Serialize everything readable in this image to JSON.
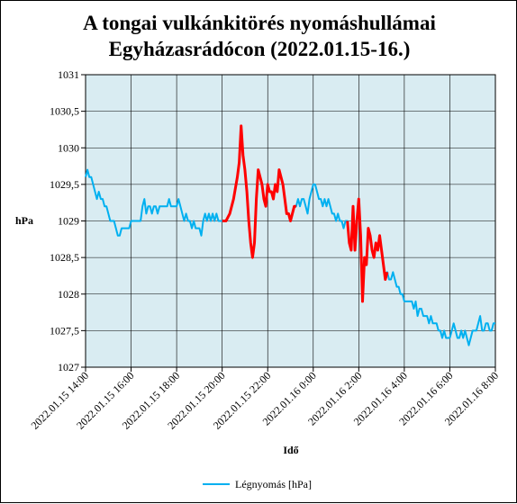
{
  "chart_data": {
    "type": "line",
    "title_line1": "A tongai vulkánkitörés nyomáshullámai",
    "title_line2": "Egyházasrádócon (2022.01.15-16.)",
    "xlabel": "Idő",
    "ylabel": "hPa",
    "ylim": [
      1027,
      1031
    ],
    "y_ticks": [
      "1027",
      "1027,5",
      "1028",
      "1028,5",
      "1029",
      "1029,5",
      "1030",
      "1030,5",
      "1031"
    ],
    "x_ticks": [
      "2022.01.15 14:00",
      "2022.01.15 16:00",
      "2022.01.15 18:00",
      "2022.01.15 20:00",
      "2022.01.15 22:00",
      "2022.01.16 0:00",
      "2022.01.16 2:00",
      "2022.01.16 4:00",
      "2022.01.16 6:00",
      "2022.01.16 8:00"
    ],
    "x_range": [
      "2022-01-15 14:00",
      "2022-01-16 08:00"
    ],
    "grid": true,
    "legend_position": "bottom",
    "plot_background": "#d9ecf2",
    "colors": {
      "series": "#00b0f0",
      "highlight": "#ff0000"
    },
    "series": [
      {
        "name": "Légnyomás [hPa]",
        "color": "#00b0f0",
        "points": [
          [
            "2022-01-15 14:00",
            1029.6
          ],
          [
            "2022-01-15 14:05",
            1029.7
          ],
          [
            "2022-01-15 14:10",
            1029.6
          ],
          [
            "2022-01-15 14:15",
            1029.6
          ],
          [
            "2022-01-15 14:20",
            1029.5
          ],
          [
            "2022-01-15 14:25",
            1029.4
          ],
          [
            "2022-01-15 14:30",
            1029.3
          ],
          [
            "2022-01-15 14:35",
            1029.4
          ],
          [
            "2022-01-15 14:40",
            1029.3
          ],
          [
            "2022-01-15 14:45",
            1029.3
          ],
          [
            "2022-01-15 14:50",
            1029.2
          ],
          [
            "2022-01-15 14:55",
            1029.2
          ],
          [
            "2022-01-15 15:00",
            1029.1
          ],
          [
            "2022-01-15 15:05",
            1029.0
          ],
          [
            "2022-01-15 15:10",
            1029.0
          ],
          [
            "2022-01-15 15:15",
            1029.0
          ],
          [
            "2022-01-15 15:20",
            1028.9
          ],
          [
            "2022-01-15 15:25",
            1028.8
          ],
          [
            "2022-01-15 15:30",
            1028.8
          ],
          [
            "2022-01-15 15:35",
            1028.9
          ],
          [
            "2022-01-15 15:40",
            1028.9
          ],
          [
            "2022-01-15 15:45",
            1028.9
          ],
          [
            "2022-01-15 15:50",
            1028.9
          ],
          [
            "2022-01-15 15:55",
            1028.9
          ],
          [
            "2022-01-15 16:00",
            1029.0
          ],
          [
            "2022-01-15 16:10",
            1029.0
          ],
          [
            "2022-01-15 16:20",
            1029.0
          ],
          [
            "2022-01-15 16:25",
            1029.0
          ],
          [
            "2022-01-15 16:30",
            1029.2
          ],
          [
            "2022-01-15 16:35",
            1029.3
          ],
          [
            "2022-01-15 16:40",
            1029.1
          ],
          [
            "2022-01-15 16:45",
            1029.2
          ],
          [
            "2022-01-15 16:50",
            1029.2
          ],
          [
            "2022-01-15 16:55",
            1029.1
          ],
          [
            "2022-01-15 17:00",
            1029.2
          ],
          [
            "2022-01-15 17:05",
            1029.2
          ],
          [
            "2022-01-15 17:10",
            1029.1
          ],
          [
            "2022-01-15 17:15",
            1029.2
          ],
          [
            "2022-01-15 17:20",
            1029.2
          ],
          [
            "2022-01-15 17:25",
            1029.2
          ],
          [
            "2022-01-15 17:30",
            1029.2
          ],
          [
            "2022-01-15 17:35",
            1029.2
          ],
          [
            "2022-01-15 17:40",
            1029.3
          ],
          [
            "2022-01-15 17:45",
            1029.2
          ],
          [
            "2022-01-15 17:50",
            1029.2
          ],
          [
            "2022-01-15 17:55",
            1029.2
          ],
          [
            "2022-01-15 18:00",
            1029.2
          ],
          [
            "2022-01-15 18:05",
            1029.3
          ],
          [
            "2022-01-15 18:10",
            1029.2
          ],
          [
            "2022-01-15 18:15",
            1029.1
          ],
          [
            "2022-01-15 18:20",
            1029.0
          ],
          [
            "2022-01-15 18:25",
            1029.1
          ],
          [
            "2022-01-15 18:30",
            1029.0
          ],
          [
            "2022-01-15 18:35",
            1029.0
          ],
          [
            "2022-01-15 18:40",
            1028.9
          ],
          [
            "2022-01-15 18:45",
            1029.0
          ],
          [
            "2022-01-15 18:50",
            1028.9
          ],
          [
            "2022-01-15 18:55",
            1028.9
          ],
          [
            "2022-01-15 19:00",
            1028.9
          ],
          [
            "2022-01-15 19:05",
            1028.8
          ],
          [
            "2022-01-15 19:10",
            1029.0
          ],
          [
            "2022-01-15 19:15",
            1029.1
          ],
          [
            "2022-01-15 19:20",
            1029.0
          ],
          [
            "2022-01-15 19:25",
            1029.1
          ],
          [
            "2022-01-15 19:30",
            1029.0
          ],
          [
            "2022-01-15 19:35",
            1029.1
          ],
          [
            "2022-01-15 19:40",
            1029.0
          ],
          [
            "2022-01-15 19:45",
            1029.1
          ],
          [
            "2022-01-15 19:50",
            1029.0
          ],
          [
            "2022-01-15 19:55",
            1029.0
          ],
          [
            "2022-01-15 20:00",
            1029.0
          ],
          [
            "2022-01-15 20:10",
            1029.0
          ],
          [
            "2022-01-15 20:20",
            1029.1
          ],
          [
            "2022-01-15 20:30",
            1029.3
          ],
          [
            "2022-01-15 20:40",
            1029.6
          ],
          [
            "2022-01-15 20:45",
            1029.8
          ],
          [
            "2022-01-15 20:50",
            1030.3
          ],
          [
            "2022-01-15 20:55",
            1029.9
          ],
          [
            "2022-01-15 21:00",
            1029.7
          ],
          [
            "2022-01-15 21:05",
            1029.4
          ],
          [
            "2022-01-15 21:10",
            1029.0
          ],
          [
            "2022-01-15 21:15",
            1028.7
          ],
          [
            "2022-01-15 21:20",
            1028.5
          ],
          [
            "2022-01-15 21:25",
            1028.7
          ],
          [
            "2022-01-15 21:30",
            1029.3
          ],
          [
            "2022-01-15 21:35",
            1029.7
          ],
          [
            "2022-01-15 21:40",
            1029.6
          ],
          [
            "2022-01-15 21:45",
            1029.5
          ],
          [
            "2022-01-15 21:50",
            1029.3
          ],
          [
            "2022-01-15 21:55",
            1029.2
          ],
          [
            "2022-01-15 22:00",
            1029.5
          ],
          [
            "2022-01-15 22:05",
            1029.4
          ],
          [
            "2022-01-15 22:10",
            1029.4
          ],
          [
            "2022-01-15 22:15",
            1029.3
          ],
          [
            "2022-01-15 22:20",
            1029.5
          ],
          [
            "2022-01-15 22:25",
            1029.4
          ],
          [
            "2022-01-15 22:30",
            1029.7
          ],
          [
            "2022-01-15 22:35",
            1029.6
          ],
          [
            "2022-01-15 22:40",
            1029.5
          ],
          [
            "2022-01-15 22:45",
            1029.3
          ],
          [
            "2022-01-15 22:50",
            1029.1
          ],
          [
            "2022-01-15 22:55",
            1029.1
          ],
          [
            "2022-01-15 23:00",
            1029.0
          ],
          [
            "2022-01-15 23:05",
            1029.1
          ],
          [
            "2022-01-15 23:10",
            1029.2
          ],
          [
            "2022-01-15 23:15",
            1029.2
          ],
          [
            "2022-01-15 23:20",
            1029.3
          ],
          [
            "2022-01-15 23:25",
            1029.2
          ],
          [
            "2022-01-15 23:30",
            1029.3
          ],
          [
            "2022-01-15 23:35",
            1029.3
          ],
          [
            "2022-01-15 23:40",
            1029.2
          ],
          [
            "2022-01-15 23:45",
            1029.1
          ],
          [
            "2022-01-15 23:50",
            1029.3
          ],
          [
            "2022-01-15 23:55",
            1029.4
          ],
          [
            "2022-01-16 00:00",
            1029.5
          ],
          [
            "2022-01-16 00:05",
            1029.5
          ],
          [
            "2022-01-16 00:10",
            1029.4
          ],
          [
            "2022-01-16 00:15",
            1029.3
          ],
          [
            "2022-01-16 00:20",
            1029.3
          ],
          [
            "2022-01-16 00:25",
            1029.2
          ],
          [
            "2022-01-16 00:30",
            1029.3
          ],
          [
            "2022-01-16 00:35",
            1029.2
          ],
          [
            "2022-01-16 00:40",
            1029.3
          ],
          [
            "2022-01-16 00:45",
            1029.2
          ],
          [
            "2022-01-16 00:50",
            1029.1
          ],
          [
            "2022-01-16 00:55",
            1029.1
          ],
          [
            "2022-01-16 01:00",
            1029.0
          ],
          [
            "2022-01-16 01:05",
            1029.1
          ],
          [
            "2022-01-16 01:10",
            1029.0
          ],
          [
            "2022-01-16 01:15",
            1029.0
          ],
          [
            "2022-01-16 01:20",
            1028.9
          ],
          [
            "2022-01-16 01:25",
            1029.0
          ],
          [
            "2022-01-16 01:30",
            1029.0
          ],
          [
            "2022-01-16 01:35",
            1028.7
          ],
          [
            "2022-01-16 01:40",
            1028.6
          ],
          [
            "2022-01-16 01:45",
            1029.2
          ],
          [
            "2022-01-16 01:50",
            1028.6
          ],
          [
            "2022-01-16 01:55",
            1029.0
          ],
          [
            "2022-01-16 02:00",
            1029.3
          ],
          [
            "2022-01-16 02:05",
            1028.8
          ],
          [
            "2022-01-16 02:10",
            1027.9
          ],
          [
            "2022-01-16 02:15",
            1028.5
          ],
          [
            "2022-01-16 02:20",
            1028.4
          ],
          [
            "2022-01-16 02:25",
            1028.9
          ],
          [
            "2022-01-16 02:30",
            1028.8
          ],
          [
            "2022-01-16 02:35",
            1028.6
          ],
          [
            "2022-01-16 02:40",
            1028.5
          ],
          [
            "2022-01-16 02:45",
            1028.7
          ],
          [
            "2022-01-16 02:50",
            1028.6
          ],
          [
            "2022-01-16 02:55",
            1028.8
          ],
          [
            "2022-01-16 03:00",
            1028.6
          ],
          [
            "2022-01-16 03:05",
            1028.4
          ],
          [
            "2022-01-16 03:10",
            1028.2
          ],
          [
            "2022-01-16 03:15",
            1028.3
          ],
          [
            "2022-01-16 03:20",
            1028.2
          ],
          [
            "2022-01-16 03:25",
            1028.2
          ],
          [
            "2022-01-16 03:30",
            1028.3
          ],
          [
            "2022-01-16 03:35",
            1028.2
          ],
          [
            "2022-01-16 03:40",
            1028.1
          ],
          [
            "2022-01-16 03:45",
            1028.1
          ],
          [
            "2022-01-16 03:50",
            1028.0
          ],
          [
            "2022-01-16 03:55",
            1028.0
          ],
          [
            "2022-01-16 04:00",
            1027.9
          ],
          [
            "2022-01-16 04:10",
            1027.9
          ],
          [
            "2022-01-16 04:20",
            1027.9
          ],
          [
            "2022-01-16 04:25",
            1027.8
          ],
          [
            "2022-01-16 04:30",
            1027.9
          ],
          [
            "2022-01-16 04:35",
            1027.7
          ],
          [
            "2022-01-16 04:40",
            1027.8
          ],
          [
            "2022-01-16 04:45",
            1027.8
          ],
          [
            "2022-01-16 04:50",
            1027.7
          ],
          [
            "2022-01-16 04:55",
            1027.7
          ],
          [
            "2022-01-16 05:00",
            1027.7
          ],
          [
            "2022-01-16 05:05",
            1027.6
          ],
          [
            "2022-01-16 05:10",
            1027.7
          ],
          [
            "2022-01-16 05:15",
            1027.6
          ],
          [
            "2022-01-16 05:20",
            1027.6
          ],
          [
            "2022-01-16 05:25",
            1027.6
          ],
          [
            "2022-01-16 05:30",
            1027.5
          ],
          [
            "2022-01-16 05:35",
            1027.5
          ],
          [
            "2022-01-16 05:40",
            1027.4
          ],
          [
            "2022-01-16 05:45",
            1027.5
          ],
          [
            "2022-01-16 05:50",
            1027.4
          ],
          [
            "2022-01-16 05:55",
            1027.4
          ],
          [
            "2022-01-16 06:00",
            1027.4
          ],
          [
            "2022-01-16 06:05",
            1027.5
          ],
          [
            "2022-01-16 06:10",
            1027.6
          ],
          [
            "2022-01-16 06:15",
            1027.5
          ],
          [
            "2022-01-16 06:20",
            1027.4
          ],
          [
            "2022-01-16 06:25",
            1027.4
          ],
          [
            "2022-01-16 06:30",
            1027.5
          ],
          [
            "2022-01-16 06:35",
            1027.4
          ],
          [
            "2022-01-16 06:40",
            1027.5
          ],
          [
            "2022-01-16 06:45",
            1027.4
          ],
          [
            "2022-01-16 06:50",
            1027.3
          ],
          [
            "2022-01-16 06:55",
            1027.4
          ],
          [
            "2022-01-16 07:00",
            1027.5
          ],
          [
            "2022-01-16 07:05",
            1027.5
          ],
          [
            "2022-01-16 07:10",
            1027.5
          ],
          [
            "2022-01-16 07:15",
            1027.6
          ],
          [
            "2022-01-16 07:20",
            1027.7
          ],
          [
            "2022-01-16 07:25",
            1027.5
          ],
          [
            "2022-01-16 07:30",
            1027.5
          ],
          [
            "2022-01-16 07:35",
            1027.6
          ],
          [
            "2022-01-16 07:40",
            1027.6
          ],
          [
            "2022-01-16 07:45",
            1027.5
          ],
          [
            "2022-01-16 07:50",
            1027.5
          ],
          [
            "2022-01-16 07:55",
            1027.6
          ],
          [
            "2022-01-16 08:00",
            1027.6
          ]
        ]
      }
    ],
    "highlight_ranges": [
      [
        "2022-01-15 20:00",
        "2022-01-15 23:15"
      ],
      [
        "2022-01-16 01:30",
        "2022-01-16 03:15"
      ]
    ]
  }
}
